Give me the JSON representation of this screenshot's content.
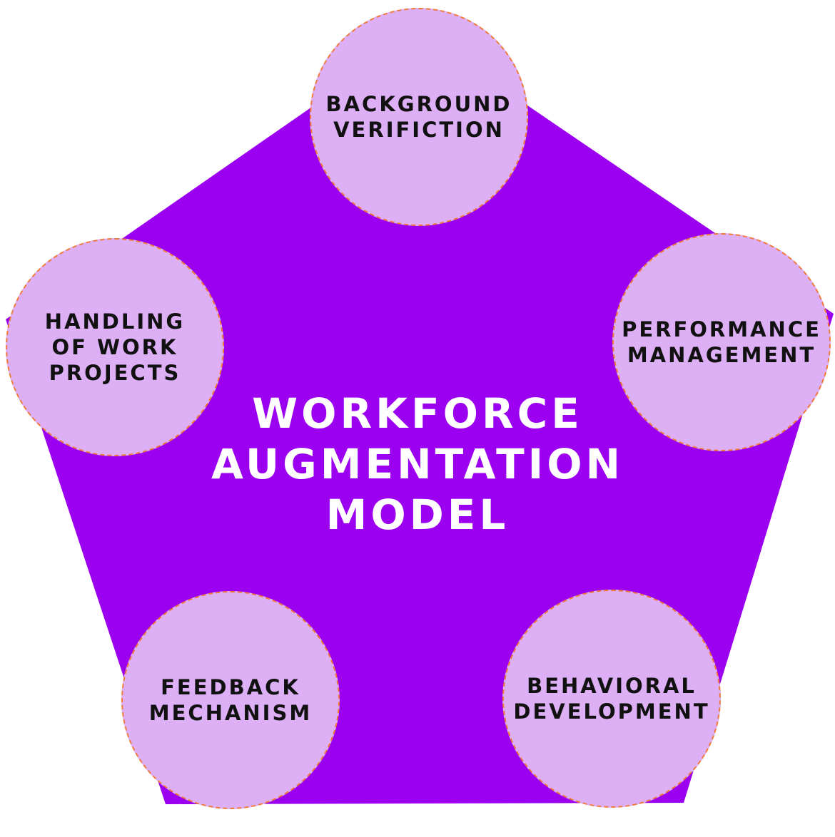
{
  "title": [
    "WORKFORCE",
    "AUGMENTATION",
    "MODEL"
  ],
  "nodes": [
    {
      "id": "background-verification",
      "lines": [
        "BACKGROUND",
        "VERIFICTION"
      ]
    },
    {
      "id": "performance-management",
      "lines": [
        "PERFORMANCE",
        "MANAGEMENT"
      ]
    },
    {
      "id": "behavioral-development",
      "lines": [
        "BEHAVIORAL",
        "DEVELOPMENT"
      ]
    },
    {
      "id": "feedback-mechanism",
      "lines": [
        "FEEDBACK",
        "MECHANISM"
      ]
    },
    {
      "id": "handling-of-work-projects",
      "lines": [
        "HANDLING",
        "OF WORK",
        "PROJECTS"
      ]
    }
  ],
  "colors": {
    "pentagon": "#9b00f0",
    "node_fill": "#ddaff5",
    "node_border": "#f07a3a",
    "title_text": "#ffffff",
    "node_text": "#111111"
  }
}
